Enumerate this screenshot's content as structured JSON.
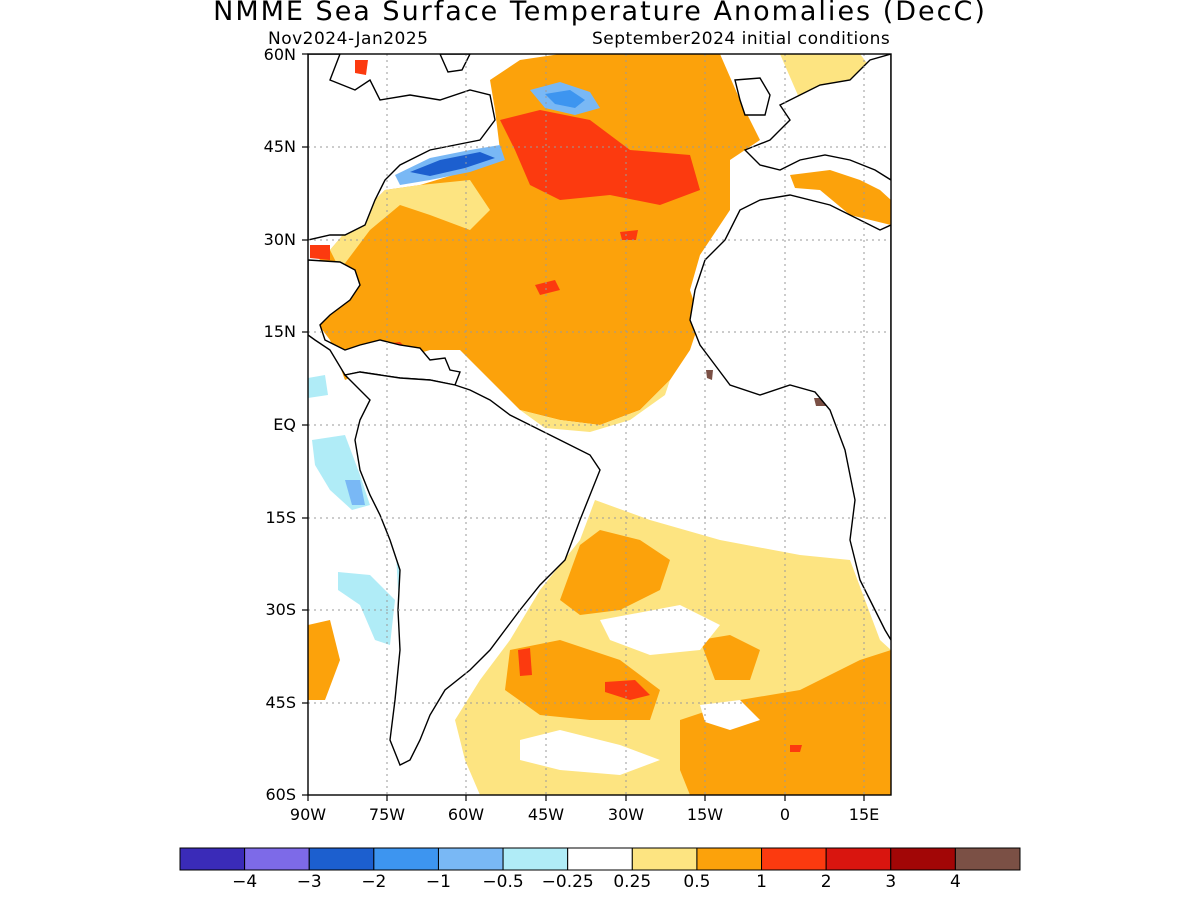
{
  "title": "NMME Sea Surface Temperature Anomalies (DecC)",
  "subtitle_left": "Nov2024-Jan2025",
  "subtitle_right": "September2024 initial conditions",
  "map": {
    "region": "Atlantic Ocean",
    "lat_labels": [
      "60N",
      "45N",
      "30N",
      "15N",
      "EQ",
      "15S",
      "30S",
      "45S",
      "60S"
    ],
    "lon_labels": [
      "90W",
      "75W",
      "60W",
      "45W",
      "30W",
      "15W",
      "0",
      "15E"
    ],
    "gridlines": "dotted"
  },
  "colorbar": {
    "colors": [
      "#3a2bb8",
      "#7d6ae8",
      "#1c5fcf",
      "#3d95f0",
      "#79b8f5",
      "#b0ecf7",
      "#ffffff",
      "#fde481",
      "#fca20b",
      "#fc3a0f",
      "#d9150f",
      "#a20606",
      "#7b5045"
    ],
    "labels": [
      "−4",
      "−3",
      "−2",
      "−1",
      "−0.5",
      "−0.25",
      "0.25",
      "0.5",
      "1",
      "2",
      "3",
      "4"
    ]
  }
}
